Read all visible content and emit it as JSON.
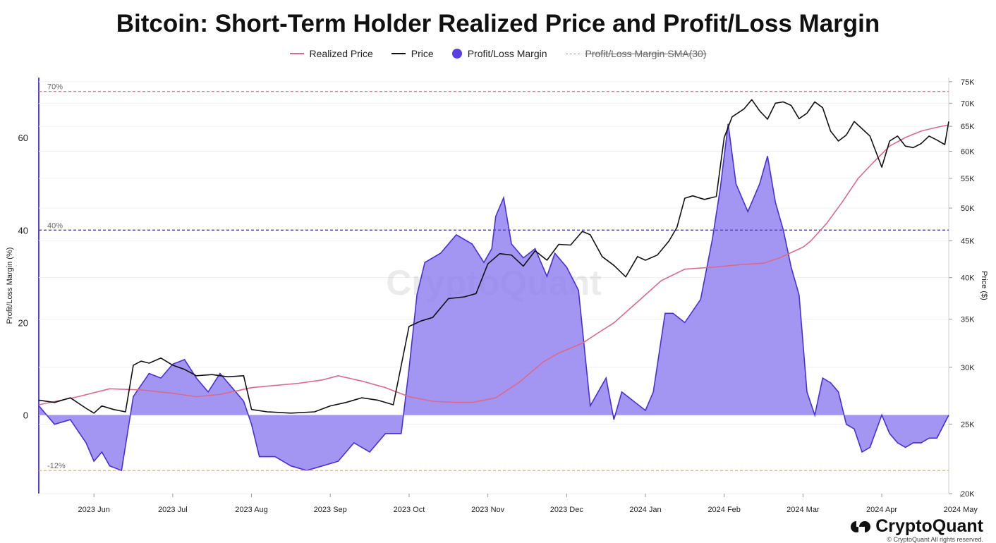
{
  "title": "Bitcoin: Short-Term Holder Realized Price and Profit/Loss Margin",
  "legend": [
    {
      "label": "Realized Price",
      "color": "#d96a8b",
      "kind": "line"
    },
    {
      "label": "Price",
      "color": "#111111",
      "kind": "line"
    },
    {
      "label": "Profit/Loss Margin",
      "color": "#5a3fe0",
      "kind": "dot"
    },
    {
      "label": "Profit/Loss Margin SMA(30)",
      "color": "#999999",
      "kind": "dash",
      "hidden": true
    }
  ],
  "watermark": "CryptoQuant",
  "brand": {
    "name": "CryptoQuant",
    "copyright": "© CryptoQuant All rights reserved."
  },
  "chart_data": {
    "type": "line",
    "x_ticks": [
      "2023 Jun",
      "2023 Jul",
      "2023 Aug",
      "2023 Sep",
      "2023 Oct",
      "2023 Nov",
      "2023 Dec",
      "2024 Jan",
      "2024 Feb",
      "2024 Mar",
      "2024 Apr",
      "2024 May"
    ],
    "x_range_months": [
      0.3,
      11.85
    ],
    "left_axis": {
      "label": "Profit/Loss Margin (%)",
      "ticks": [
        0,
        20,
        40,
        60
      ],
      "ylim": [
        -17,
        73
      ]
    },
    "right_axis": {
      "label": "Price ($)",
      "scale": "log",
      "ticks": [
        {
          "v": 20000,
          "t": "20K"
        },
        {
          "v": 25000,
          "t": "25K"
        },
        {
          "v": 30000,
          "t": "30K"
        },
        {
          "v": 35000,
          "t": "35K"
        },
        {
          "v": 40000,
          "t": "40K"
        },
        {
          "v": 45000,
          "t": "45K"
        },
        {
          "v": 50000,
          "t": "50K"
        },
        {
          "v": 55000,
          "t": "55K"
        },
        {
          "v": 60000,
          "t": "60K"
        },
        {
          "v": 65000,
          "t": "65K"
        },
        {
          "v": 70000,
          "t": "70K"
        },
        {
          "v": 75000,
          "t": "75K"
        }
      ],
      "ylim": [
        20000,
        76000
      ]
    },
    "reference_lines": [
      {
        "value": 70,
        "label": "70%",
        "color": "#e07a9a"
      },
      {
        "value": 40,
        "label": "40%",
        "color": "#4a3fb0"
      },
      {
        "value": -12,
        "label": "-12%",
        "color": "#e8b84a"
      }
    ],
    "series": [
      {
        "name": "Profit/Loss Margin",
        "axis": "left",
        "style": "area",
        "x": [
          0.3,
          0.5,
          0.7,
          0.9,
          1.0,
          1.1,
          1.2,
          1.35,
          1.5,
          1.7,
          1.85,
          2.0,
          2.15,
          2.3,
          2.45,
          2.6,
          2.75,
          2.9,
          3.0,
          3.1,
          3.3,
          3.5,
          3.7,
          3.9,
          4.1,
          4.3,
          4.5,
          4.7,
          4.9,
          5.0,
          5.1,
          5.2,
          5.4,
          5.6,
          5.8,
          5.95,
          6.05,
          6.1,
          6.2,
          6.3,
          6.45,
          6.6,
          6.75,
          6.85,
          7.0,
          7.15,
          7.3,
          7.5,
          7.6,
          7.7,
          7.85,
          8.0,
          8.1,
          8.25,
          8.35,
          8.5,
          8.7,
          8.85,
          8.95,
          9.05,
          9.15,
          9.3,
          9.45,
          9.55,
          9.65,
          9.75,
          9.85,
          9.95,
          10.05,
          10.15,
          10.25,
          10.35,
          10.45,
          10.55,
          10.65,
          10.75,
          10.85,
          11.0,
          11.1,
          11.2,
          11.3,
          11.4,
          11.5,
          11.6,
          11.7,
          11.85
        ],
        "y": [
          2,
          -2,
          -1,
          -6,
          -10,
          -8,
          -11,
          -12,
          4,
          9,
          8,
          11,
          12,
          8,
          5,
          9,
          6,
          3,
          -2,
          -9,
          -9,
          -11,
          -12,
          -11,
          -10,
          -6,
          -8,
          -4,
          -4,
          10,
          26,
          33,
          35,
          39,
          37,
          33,
          36,
          43,
          47,
          37,
          34,
          36,
          30,
          35,
          32,
          27,
          2,
          8,
          -1,
          5,
          3,
          1,
          5,
          22,
          22,
          20,
          25,
          38,
          49,
          63,
          50,
          44,
          50,
          56,
          46,
          40,
          32,
          26,
          5,
          0,
          8,
          7,
          5,
          -2,
          -3,
          -8,
          -7,
          0,
          -4,
          -6,
          -7,
          -6,
          -6,
          -5,
          -5,
          0
        ]
      },
      {
        "name": "Price",
        "axis": "right",
        "style": "line",
        "x": [
          0.3,
          0.5,
          0.7,
          0.9,
          1.0,
          1.1,
          1.25,
          1.4,
          1.5,
          1.6,
          1.7,
          1.85,
          2.0,
          2.15,
          2.3,
          2.5,
          2.7,
          2.9,
          3.0,
          3.2,
          3.5,
          3.8,
          4.0,
          4.2,
          4.4,
          4.6,
          4.8,
          5.0,
          5.15,
          5.3,
          5.5,
          5.7,
          5.85,
          6.0,
          6.15,
          6.3,
          6.45,
          6.6,
          6.75,
          6.9,
          7.05,
          7.2,
          7.3,
          7.45,
          7.6,
          7.75,
          7.9,
          8.0,
          8.15,
          8.3,
          8.4,
          8.5,
          8.6,
          8.75,
          8.9,
          9.0,
          9.1,
          9.25,
          9.35,
          9.45,
          9.55,
          9.65,
          9.75,
          9.85,
          9.95,
          10.05,
          10.15,
          10.25,
          10.35,
          10.45,
          10.55,
          10.65,
          10.75,
          10.85,
          11.0,
          11.1,
          11.2,
          11.3,
          11.4,
          11.5,
          11.6,
          11.7,
          11.8,
          11.85
        ],
        "y": [
          27000,
          26800,
          27200,
          26300,
          25900,
          26500,
          26200,
          26000,
          30200,
          30600,
          30400,
          30900,
          30200,
          29800,
          29200,
          29300,
          29100,
          29200,
          26200,
          26000,
          25900,
          26000,
          26500,
          26800,
          27200,
          27000,
          26600,
          34200,
          34800,
          35200,
          37400,
          37600,
          38000,
          41800,
          43200,
          43000,
          41500,
          43600,
          42300,
          44500,
          44400,
          46400,
          45900,
          42800,
          41600,
          40100,
          42800,
          42300,
          43000,
          45000,
          47000,
          51600,
          52000,
          51400,
          51900,
          62700,
          67000,
          68700,
          70800,
          68300,
          66500,
          70000,
          70300,
          69500,
          66600,
          67800,
          70300,
          69000,
          64000,
          62000,
          63200,
          66000,
          64500,
          63000,
          57000,
          62000,
          63000,
          61000,
          60700,
          61500,
          63000,
          62200,
          61300,
          66000
        ]
      },
      {
        "name": "Realized Price",
        "axis": "right",
        "style": "line",
        "x": [
          0.3,
          0.8,
          1.2,
          1.6,
          2.0,
          2.3,
          2.6,
          3.0,
          3.3,
          3.6,
          3.9,
          4.1,
          4.4,
          4.7,
          5.0,
          5.3,
          5.6,
          5.8,
          6.1,
          6.4,
          6.7,
          6.9,
          7.2,
          7.4,
          7.6,
          7.9,
          8.2,
          8.5,
          8.9,
          9.2,
          9.5,
          9.7,
          9.9,
          10.0,
          10.1,
          10.3,
          10.5,
          10.7,
          10.9,
          11.1,
          11.3,
          11.5,
          11.7,
          11.85
        ],
        "y": [
          26600,
          27300,
          28000,
          27900,
          27600,
          27300,
          27500,
          28100,
          28300,
          28500,
          28800,
          29200,
          28700,
          28100,
          27300,
          26900,
          26800,
          26800,
          27200,
          28600,
          30500,
          31400,
          32400,
          33500,
          34600,
          37000,
          39600,
          41100,
          41400,
          41700,
          41900,
          42600,
          43600,
          44100,
          45000,
          47600,
          51000,
          55000,
          58000,
          61000,
          62700,
          64000,
          64800,
          65300
        ]
      }
    ]
  }
}
